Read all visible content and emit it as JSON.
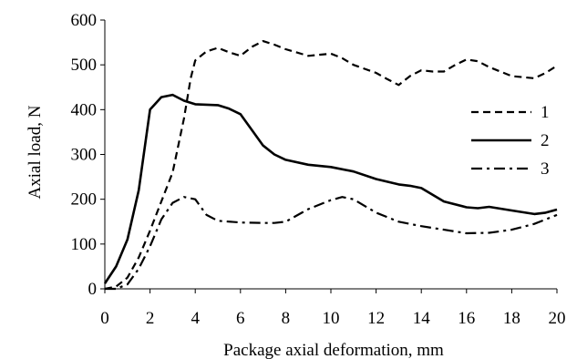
{
  "chart_data": {
    "type": "line",
    "xlabel": "Package axial deformation,  mm",
    "ylabel": "Axial load, N",
    "xlim": [
      0,
      20
    ],
    "ylim": [
      0,
      600
    ],
    "x_ticks": [
      "0",
      "2",
      "4",
      "6",
      "8",
      "10",
      "12",
      "14",
      "16",
      "18",
      "20"
    ],
    "y_ticks": [
      "0",
      "100",
      "200",
      "300",
      "400",
      "500",
      "600"
    ],
    "grid": false,
    "legend_position": "right",
    "series": [
      {
        "name": "1",
        "style": "dashed",
        "color": "#000000",
        "points": [
          [
            0,
            0
          ],
          [
            0.5,
            5
          ],
          [
            1,
            25
          ],
          [
            1.5,
            70
          ],
          [
            2,
            130
          ],
          [
            2.5,
            195
          ],
          [
            3,
            260
          ],
          [
            3.5,
            380
          ],
          [
            3.8,
            470
          ],
          [
            4,
            510
          ],
          [
            4.5,
            530
          ],
          [
            5,
            538
          ],
          [
            5.5,
            528
          ],
          [
            6,
            520
          ],
          [
            6.5,
            540
          ],
          [
            7,
            553
          ],
          [
            7.5,
            545
          ],
          [
            8,
            535
          ],
          [
            9,
            520
          ],
          [
            10,
            525
          ],
          [
            10.5,
            515
          ],
          [
            11,
            500
          ],
          [
            12,
            482
          ],
          [
            12.5,
            468
          ],
          [
            13,
            455
          ],
          [
            13.5,
            475
          ],
          [
            14,
            488
          ],
          [
            14.5,
            485
          ],
          [
            15,
            485
          ],
          [
            15.5,
            500
          ],
          [
            16,
            512
          ],
          [
            16.5,
            508
          ],
          [
            17,
            495
          ],
          [
            18,
            475
          ],
          [
            19,
            470
          ],
          [
            19.5,
            482
          ],
          [
            20,
            498
          ]
        ]
      },
      {
        "name": "2",
        "style": "solid",
        "color": "#000000",
        "points": [
          [
            0,
            12
          ],
          [
            0.5,
            50
          ],
          [
            1,
            110
          ],
          [
            1.5,
            220
          ],
          [
            2,
            400
          ],
          [
            2.5,
            428
          ],
          [
            3,
            433
          ],
          [
            3.5,
            420
          ],
          [
            4,
            412
          ],
          [
            5,
            410
          ],
          [
            5.5,
            402
          ],
          [
            6,
            390
          ],
          [
            6.5,
            355
          ],
          [
            7,
            320
          ],
          [
            7.5,
            300
          ],
          [
            8,
            288
          ],
          [
            9,
            277
          ],
          [
            10,
            272
          ],
          [
            11,
            262
          ],
          [
            12,
            245
          ],
          [
            13,
            233
          ],
          [
            13.5,
            230
          ],
          [
            14,
            225
          ],
          [
            14.5,
            210
          ],
          [
            15,
            195
          ],
          [
            16,
            182
          ],
          [
            16.5,
            180
          ],
          [
            17,
            183
          ],
          [
            18,
            175
          ],
          [
            19,
            167
          ],
          [
            19.5,
            170
          ],
          [
            20,
            177
          ]
        ]
      },
      {
        "name": "3",
        "style": "dash-dot",
        "color": "#000000",
        "points": [
          [
            0,
            0
          ],
          [
            0.5,
            0
          ],
          [
            1,
            10
          ],
          [
            1.5,
            45
          ],
          [
            2,
            95
          ],
          [
            2.5,
            155
          ],
          [
            3,
            192
          ],
          [
            3.5,
            205
          ],
          [
            4,
            200
          ],
          [
            4.5,
            165
          ],
          [
            5,
            152
          ],
          [
            6,
            148
          ],
          [
            7,
            147
          ],
          [
            7.5,
            147
          ],
          [
            8,
            150
          ],
          [
            9,
            178
          ],
          [
            10,
            198
          ],
          [
            10.5,
            205
          ],
          [
            11,
            200
          ],
          [
            12,
            170
          ],
          [
            13,
            150
          ],
          [
            14,
            140
          ],
          [
            15,
            132
          ],
          [
            16,
            124
          ],
          [
            17,
            125
          ],
          [
            18,
            132
          ],
          [
            19,
            145
          ],
          [
            20,
            165
          ]
        ]
      }
    ]
  }
}
